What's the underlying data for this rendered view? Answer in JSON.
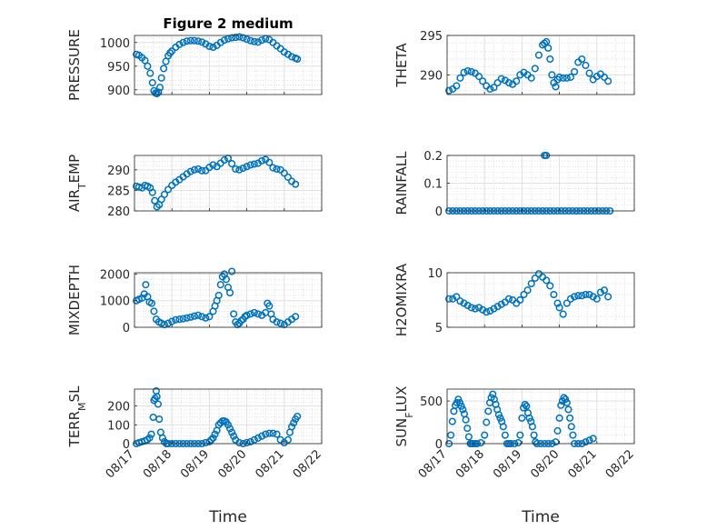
{
  "figure": {
    "title": "Figure 2 medium",
    "xlabel": "Time",
    "xticks": [
      "08/17",
      "08/18",
      "08/19",
      "08/20",
      "08/21",
      "08/22"
    ],
    "marker_color": "#0072BD"
  },
  "chart_data": [
    {
      "type": "scatter",
      "ylabel": "PRESSURE",
      "ylim": [
        890,
        1015
      ],
      "yticks": [
        900,
        950,
        1000
      ],
      "grid": true,
      "x": [
        0.05,
        0.12,
        0.2,
        0.28,
        0.35,
        0.42,
        0.48,
        0.52,
        0.56,
        0.6,
        0.64,
        0.68,
        0.72,
        0.78,
        0.84,
        0.9,
        0.95,
        1.0,
        1.1,
        1.2,
        1.3,
        1.4,
        1.5,
        1.6,
        1.7,
        1.8,
        1.9,
        2.0,
        2.1,
        2.2,
        2.3,
        2.4,
        2.5,
        2.6,
        2.7,
        2.8,
        2.9,
        3.0,
        3.1,
        3.2,
        3.3,
        3.4,
        3.5,
        3.6,
        3.7,
        3.8,
        3.9,
        4.0,
        4.1,
        4.2,
        4.3,
        4.35
      ],
      "y": [
        975,
        973,
        968,
        962,
        950,
        935,
        915,
        898,
        893,
        892,
        895,
        905,
        925,
        945,
        960,
        972,
        978,
        982,
        990,
        996,
        1000,
        1003,
        1004,
        1004,
        1003,
        1001,
        997,
        992,
        990,
        994,
        1000,
        1005,
        1008,
        1010,
        1011,
        1012,
        1010,
        1007,
        1004,
        1002,
        1001,
        1005,
        1008,
        1006,
        1000,
        993,
        987,
        980,
        975,
        970,
        967,
        965
      ]
    },
    {
      "type": "scatter",
      "ylabel": "THETA",
      "ylim": [
        287.5,
        295
      ],
      "yticks": [
        290,
        295
      ],
      "grid": true,
      "x": [
        0.05,
        0.15,
        0.25,
        0.35,
        0.45,
        0.55,
        0.65,
        0.75,
        0.85,
        0.95,
        1.05,
        1.15,
        1.25,
        1.35,
        1.45,
        1.55,
        1.65,
        1.75,
        1.85,
        1.95,
        2.05,
        2.15,
        2.25,
        2.35,
        2.45,
        2.55,
        2.6,
        2.65,
        2.7,
        2.75,
        2.8,
        2.85,
        2.9,
        2.95,
        3.0,
        3.1,
        3.2,
        3.3,
        3.4,
        3.5,
        3.6,
        3.7,
        3.8,
        3.9,
        4.0,
        4.1,
        4.2,
        4.3
      ],
      "y": [
        288,
        288.2,
        288.6,
        289.6,
        290.3,
        290.5,
        290.4,
        290.2,
        289.8,
        289.2,
        288.6,
        288.2,
        288.4,
        289,
        289.5,
        289.3,
        289,
        288.8,
        289.2,
        290,
        290.3,
        290,
        289.6,
        290.8,
        292.5,
        293.8,
        294,
        294.2,
        293.4,
        292,
        290,
        289,
        288.5,
        289.4,
        289.7,
        289.6,
        289.6,
        289.7,
        290.4,
        291.6,
        292,
        291.2,
        290.2,
        289.4,
        289.8,
        290.1,
        289.7,
        289.2
      ]
    },
    {
      "type": "scatter",
      "ylabel": "AIR_TEMP",
      "ylim": [
        280,
        293.5
      ],
      "yticks": [
        280,
        285,
        290
      ],
      "grid": true,
      "x": [
        0.05,
        0.12,
        0.2,
        0.28,
        0.35,
        0.42,
        0.48,
        0.54,
        0.6,
        0.66,
        0.72,
        0.8,
        0.9,
        1.0,
        1.1,
        1.2,
        1.3,
        1.4,
        1.5,
        1.6,
        1.7,
        1.8,
        1.9,
        2.0,
        2.1,
        2.2,
        2.3,
        2.4,
        2.5,
        2.6,
        2.7,
        2.8,
        2.9,
        3.0,
        3.1,
        3.2,
        3.3,
        3.4,
        3.5,
        3.6,
        3.7,
        3.8,
        3.9,
        4.0,
        4.1,
        4.2,
        4.3
      ],
      "y": [
        286,
        285.8,
        285.6,
        286.2,
        286,
        285.6,
        284.5,
        282.5,
        281,
        281.5,
        282.8,
        284,
        285.2,
        286.2,
        287,
        287.6,
        288.3,
        289,
        289.6,
        290,
        290.2,
        289.8,
        289.8,
        290.6,
        291.2,
        290.8,
        291.6,
        292.4,
        292.8,
        291.5,
        290.2,
        290,
        290.4,
        290.8,
        291.2,
        291.4,
        291.6,
        292.2,
        292.5,
        291.8,
        290.5,
        290.2,
        290,
        289.2,
        288.2,
        287.2,
        286.5
      ]
    },
    {
      "type": "scatter",
      "ylabel": "RAINFALL",
      "ylim": [
        0,
        0.2
      ],
      "yticks": [
        0,
        0.1,
        0.2
      ],
      "grid": true,
      "x": [
        0.05,
        0.15,
        0.25,
        0.35,
        0.45,
        0.55,
        0.65,
        0.75,
        0.85,
        0.95,
        1.05,
        1.15,
        1.25,
        1.35,
        1.45,
        1.55,
        1.65,
        1.75,
        1.85,
        1.95,
        2.05,
        2.15,
        2.25,
        2.35,
        2.45,
        2.55,
        2.65,
        2.75,
        2.85,
        2.95,
        3.05,
        3.15,
        3.25,
        3.35,
        3.45,
        3.55,
        3.65,
        3.75,
        3.85,
        3.95,
        4.05,
        4.15,
        4.25,
        4.35,
        2.6,
        2.65
      ],
      "y": [
        0,
        0,
        0,
        0,
        0,
        0,
        0,
        0,
        0,
        0,
        0,
        0,
        0,
        0,
        0,
        0,
        0,
        0,
        0,
        0,
        0,
        0,
        0,
        0,
        0,
        0,
        0,
        0,
        0,
        0,
        0,
        0,
        0,
        0,
        0,
        0,
        0,
        0,
        0,
        0,
        0,
        0,
        0,
        0,
        0.2,
        0.2
      ]
    },
    {
      "type": "scatter",
      "ylabel": "MIXDEPTH",
      "ylim": [
        0,
        2050
      ],
      "yticks": [
        0,
        1000,
        2000
      ],
      "grid": true,
      "x": [
        0.05,
        0.12,
        0.2,
        0.26,
        0.3,
        0.35,
        0.4,
        0.46,
        0.52,
        0.58,
        0.65,
        0.72,
        0.8,
        0.9,
        1.0,
        1.1,
        1.2,
        1.3,
        1.4,
        1.5,
        1.6,
        1.7,
        1.8,
        1.9,
        2.0,
        2.1,
        2.15,
        2.2,
        2.25,
        2.3,
        2.35,
        2.4,
        2.45,
        2.5,
        2.55,
        2.6,
        2.65,
        2.7,
        2.75,
        2.8,
        2.85,
        2.9,
        2.95,
        3.0,
        3.1,
        3.2,
        3.3,
        3.4,
        3.5,
        3.55,
        3.6,
        3.65,
        3.7,
        3.8,
        3.9,
        4.0,
        4.1,
        4.2,
        4.3
      ],
      "y": [
        1000,
        1050,
        1100,
        1250,
        1600,
        1150,
        950,
        900,
        600,
        300,
        200,
        150,
        100,
        150,
        220,
        280,
        300,
        320,
        350,
        380,
        420,
        450,
        400,
        350,
        400,
        600,
        800,
        1000,
        1200,
        1600,
        1900,
        2000,
        1800,
        1500,
        1300,
        2100,
        500,
        200,
        100,
        150,
        250,
        300,
        400,
        450,
        500,
        550,
        500,
        450,
        550,
        900,
        800,
        500,
        300,
        200,
        150,
        100,
        200,
        300,
        400
      ]
    },
    {
      "type": "scatter",
      "ylabel": "H2OMIXRA",
      "ylim": [
        5,
        10
      ],
      "yticks": [
        5,
        10
      ],
      "grid": true,
      "x": [
        0.05,
        0.15,
        0.25,
        0.35,
        0.45,
        0.55,
        0.65,
        0.75,
        0.85,
        0.95,
        1.05,
        1.15,
        1.25,
        1.35,
        1.45,
        1.55,
        1.65,
        1.75,
        1.85,
        1.95,
        2.05,
        2.15,
        2.25,
        2.35,
        2.45,
        2.55,
        2.65,
        2.75,
        2.85,
        2.95,
        3.0,
        3.1,
        3.2,
        3.3,
        3.4,
        3.5,
        3.6,
        3.7,
        3.8,
        3.9,
        4.0,
        4.1,
        4.2,
        4.3
      ],
      "y": [
        7.6,
        7.6,
        7.8,
        7.4,
        7.2,
        7,
        6.8,
        6.7,
        6.8,
        6.6,
        6.4,
        6.5,
        6.7,
        6.9,
        7.1,
        7.3,
        7.6,
        7.5,
        7.2,
        7.5,
        8,
        8.4,
        9,
        9.5,
        9.9,
        9.6,
        9.3,
        8.8,
        8,
        7.2,
        6.8,
        6.2,
        7.2,
        7.6,
        7.8,
        7.9,
        7.9,
        8,
        8,
        7.8,
        7.6,
        8.2,
        8.4,
        7.8
      ]
    },
    {
      "type": "scatter",
      "ylabel": "TERR_MSL",
      "ylim": [
        0,
        290
      ],
      "yticks": [
        0,
        100,
        200
      ],
      "grid": true,
      "x": [
        0.05,
        0.12,
        0.2,
        0.28,
        0.34,
        0.4,
        0.45,
        0.5,
        0.52,
        0.55,
        0.58,
        0.6,
        0.63,
        0.66,
        0.7,
        0.75,
        0.8,
        0.85,
        0.9,
        1.0,
        1.1,
        1.2,
        1.3,
        1.4,
        1.5,
        1.6,
        1.7,
        1.8,
        1.9,
        2.0,
        2.05,
        2.1,
        2.15,
        2.2,
        2.25,
        2.3,
        2.35,
        2.4,
        2.45,
        2.5,
        2.55,
        2.6,
        2.65,
        2.7,
        2.8,
        2.9,
        3.0,
        3.1,
        3.2,
        3.3,
        3.4,
        3.5,
        3.6,
        3.7,
        3.8,
        3.9,
        4.0,
        4.1,
        4.15,
        4.2,
        4.25,
        4.3,
        4.35
      ],
      "y": [
        0,
        5,
        10,
        15,
        20,
        30,
        50,
        140,
        230,
        240,
        280,
        250,
        210,
        130,
        60,
        30,
        10,
        0,
        0,
        0,
        0,
        0,
        0,
        0,
        0,
        0,
        0,
        0,
        5,
        10,
        20,
        30,
        50,
        70,
        100,
        110,
        120,
        120,
        115,
        100,
        80,
        60,
        40,
        20,
        5,
        0,
        5,
        10,
        20,
        30,
        40,
        50,
        55,
        55,
        50,
        20,
        5,
        20,
        60,
        90,
        110,
        130,
        145
      ]
    },
    {
      "type": "scatter",
      "ylabel": "SUN_FLUX",
      "ylim": [
        0,
        640
      ],
      "yticks": [
        0,
        500
      ],
      "grid": true,
      "x": [
        0.05,
        0.1,
        0.14,
        0.18,
        0.22,
        0.26,
        0.3,
        0.34,
        0.38,
        0.42,
        0.46,
        0.5,
        0.54,
        0.58,
        0.62,
        0.66,
        0.7,
        0.75,
        0.8,
        0.9,
        1.0,
        1.05,
        1.1,
        1.14,
        1.18,
        1.22,
        1.26,
        1.3,
        1.34,
        1.38,
        1.42,
        1.46,
        1.5,
        1.55,
        1.6,
        1.65,
        1.7,
        1.8,
        1.9,
        1.95,
        2.0,
        2.04,
        2.08,
        2.12,
        2.16,
        2.2,
        2.24,
        2.28,
        2.32,
        2.36,
        2.4,
        2.5,
        2.6,
        2.7,
        2.8,
        2.9,
        2.95,
        3.0,
        3.04,
        3.08,
        3.12,
        3.16,
        3.2,
        3.24,
        3.28,
        3.32,
        3.36,
        3.4,
        3.5,
        3.6,
        3.7,
        3.8,
        3.9
      ],
      "y": [
        0,
        100,
        260,
        380,
        450,
        480,
        520,
        480,
        440,
        400,
        350,
        280,
        180,
        80,
        0,
        0,
        0,
        0,
        0,
        10,
        100,
        250,
        380,
        480,
        540,
        580,
        520,
        460,
        400,
        340,
        300,
        260,
        200,
        100,
        0,
        0,
        0,
        0,
        10,
        100,
        300,
        420,
        460,
        440,
        360,
        300,
        260,
        200,
        100,
        20,
        0,
        0,
        0,
        0,
        0,
        20,
        150,
        300,
        450,
        500,
        540,
        520,
        480,
        400,
        300,
        200,
        100,
        0,
        0,
        0,
        20,
        40,
        60
      ]
    }
  ]
}
